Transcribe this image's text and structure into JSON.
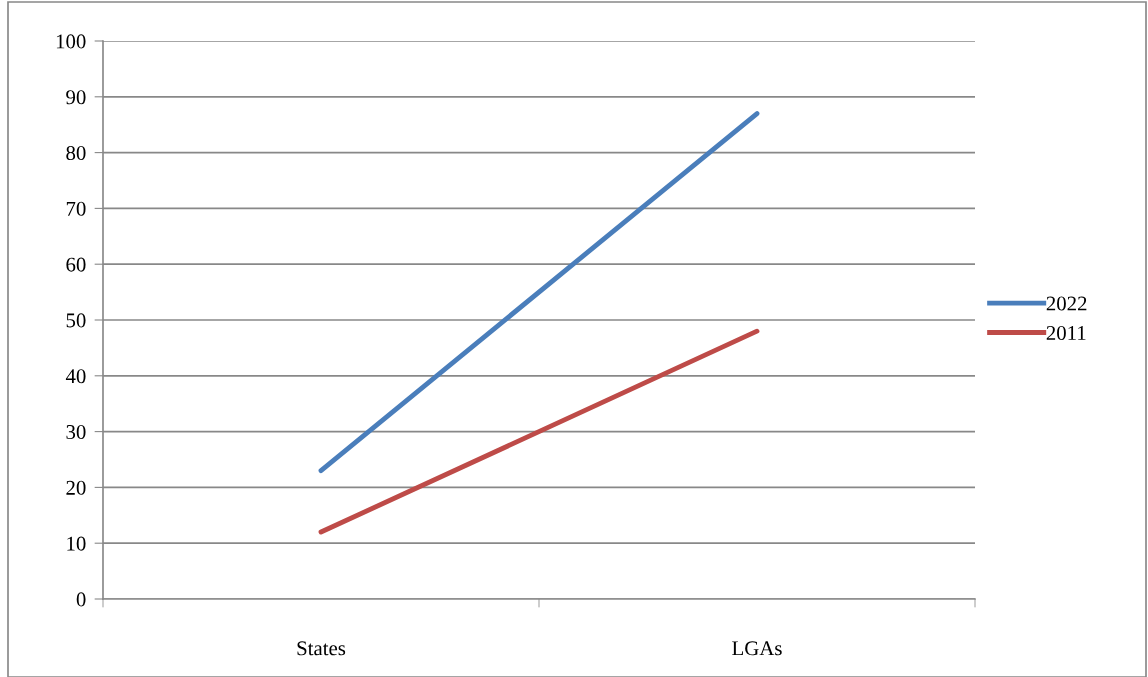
{
  "chart_data": {
    "type": "line",
    "categories": [
      "States",
      "LGAs"
    ],
    "series": [
      {
        "name": "2022",
        "color": "#4a7ebb",
        "values": [
          23,
          87
        ]
      },
      {
        "name": "2011",
        "color": "#be4b48",
        "values": [
          12,
          48
        ]
      }
    ],
    "ylim": [
      0,
      100
    ],
    "yticks": [
      0,
      10,
      20,
      30,
      40,
      50,
      60,
      70,
      80,
      90,
      100
    ],
    "grid": "y",
    "legend": "right",
    "marker": "none",
    "line_style": "solid"
  }
}
